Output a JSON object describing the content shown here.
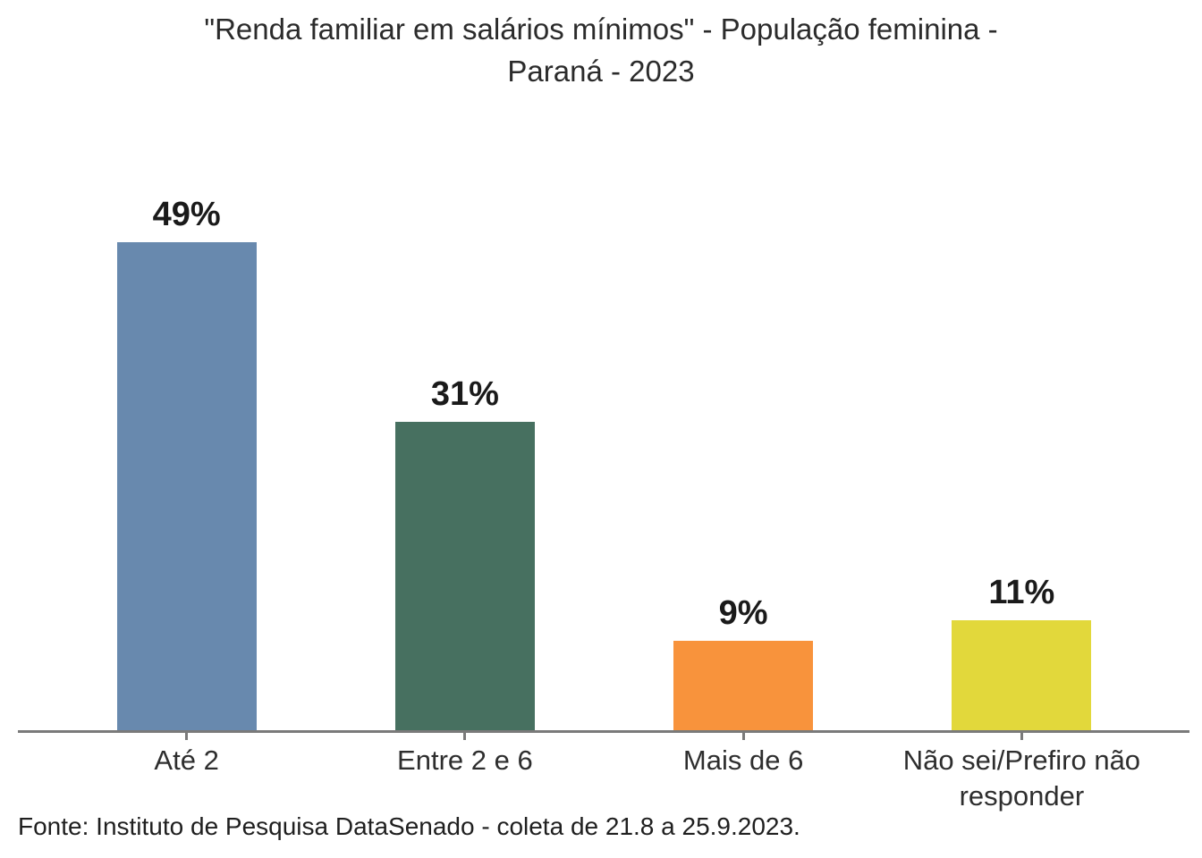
{
  "title": {
    "line1": "\"Renda familiar em salários mínimos\" - População feminina -",
    "line2": "Paraná - 2023"
  },
  "footer": "Fonte: Instituto de Pesquisa DataSenado - coleta de 21.8 a 25.9.2023.",
  "chart_data": {
    "type": "bar",
    "title": "\"Renda familiar em salários mínimos\" - População feminina - Paraná - 2023",
    "categories": [
      "Até 2",
      "Entre 2 e 6",
      "Mais de 6",
      "Não sei/Prefiro não responder"
    ],
    "values": [
      49,
      31,
      9,
      11
    ],
    "value_labels": [
      "49%",
      "31%",
      "9%",
      "11%"
    ],
    "bar_colors": [
      "#6889ae",
      "#477060",
      "#f8933c",
      "#e2d83b"
    ],
    "xlabel": "",
    "ylabel": "",
    "ylim": [
      0,
      54
    ],
    "grid": false,
    "legend": false,
    "axis_color": "#7a7a7a",
    "source": "Fonte: Instituto de Pesquisa DataSenado - coleta de 21.8 a 25.9.2023."
  }
}
